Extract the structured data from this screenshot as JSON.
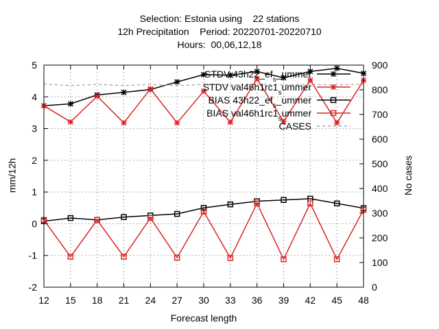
{
  "chart_data": {
    "type": "line",
    "title_lines": [
      "Selection: Estonia using    22 stations",
      "12h Precipitation    Period: 20220701-20220710",
      "Hours:  00,06,12,18"
    ],
    "xlabel": "Forecast length",
    "ylabel": "mm/12h",
    "y2label": "No cases",
    "x": [
      12,
      15,
      18,
      21,
      24,
      27,
      30,
      33,
      36,
      39,
      42,
      45,
      48
    ],
    "xlim": [
      12,
      48
    ],
    "ylim": [
      -2,
      5
    ],
    "y2lim": [
      0,
      900
    ],
    "x_ticks": [
      "12",
      "15",
      "18",
      "21",
      "24",
      "27",
      "30",
      "33",
      "36",
      "39",
      "42",
      "45",
      "48"
    ],
    "y_ticks": [
      "-2",
      "-1",
      "0",
      "1",
      "2",
      "3",
      "4",
      "5"
    ],
    "y2_ticks": [
      "0",
      "100",
      "200",
      "300",
      "400",
      "500",
      "600",
      "700",
      "800",
      "900"
    ],
    "grid": true,
    "legend_position": "top-right",
    "series": [
      {
        "name": "STDV 43h22_efs_ummer",
        "label_main": "STDV 43h22_ef",
        "label_sub": "s",
        "label_end": "_ummer",
        "color": "#000000",
        "marker": "star",
        "axis": "y",
        "values": [
          3.72,
          3.78,
          4.06,
          4.14,
          4.23,
          4.47,
          4.7,
          4.68,
          4.8,
          4.6,
          4.8,
          4.9,
          4.74
        ]
      },
      {
        "name": "STDV val46h1rc1_summer",
        "label_main": "STDV val46h1rc1",
        "label_sub": "s",
        "label_end": "ummer",
        "color": "#dd2222",
        "marker": "x",
        "axis": "y",
        "values": [
          3.72,
          3.21,
          4.02,
          3.18,
          4.25,
          3.18,
          4.18,
          3.2,
          4.57,
          3.22,
          4.53,
          3.18,
          4.52
        ]
      },
      {
        "name": "BIAS 43h22_efs_ummer",
        "label_main": "BIAS 43h22_ef",
        "label_sub": "s",
        "label_end": "_ummer",
        "color": "#000000",
        "marker": "square",
        "axis": "y",
        "values": [
          0.08,
          0.18,
          0.12,
          0.21,
          0.26,
          0.31,
          0.5,
          0.61,
          0.71,
          0.75,
          0.79,
          0.64,
          0.49
        ]
      },
      {
        "name": "BIAS val46h1rc1_summer",
        "label_main": "BIAS val46h1rc1",
        "label_sub": "s",
        "label_end": "ummer",
        "color": "#dd2222",
        "marker": "square",
        "axis": "y",
        "values": [
          0.12,
          -1.04,
          0.12,
          -1.04,
          0.18,
          -1.07,
          0.38,
          -1.08,
          0.64,
          -1.12,
          0.64,
          -1.12,
          0.44
        ]
      },
      {
        "name": "CASES",
        "label_main": "CASES",
        "label_sub": "",
        "label_end": "",
        "color": "#999999",
        "marker": "none",
        "dashed": true,
        "axis": "y2",
        "values": [
          823,
          817,
          822,
          817,
          822,
          817,
          822,
          820,
          822,
          820,
          822,
          820,
          822
        ]
      }
    ]
  }
}
